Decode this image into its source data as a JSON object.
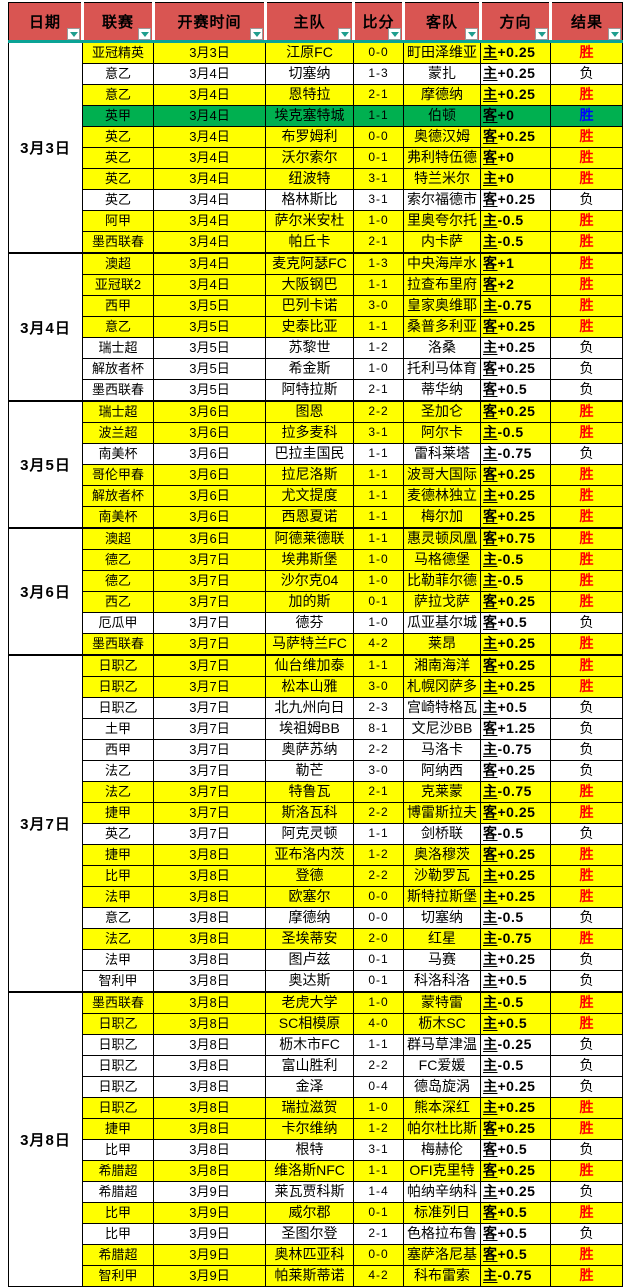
{
  "table": {
    "headers": [
      "日期",
      "联赛",
      "开赛时间",
      "主队",
      "比分",
      "客队",
      "方向",
      "结果"
    ],
    "groups": [
      {
        "date": "3月3日",
        "rows": [
          {
            "league": "亚冠精英",
            "time": "3月3日",
            "home": "江原FC",
            "score": "0-0",
            "away": "町田泽维亚",
            "dir": "主+0.25",
            "result": "胜",
            "style": "win"
          },
          {
            "league": "意乙",
            "time": "3月4日",
            "home": "切塞纳",
            "score": "1-3",
            "away": "蒙扎",
            "dir": "主+0.25",
            "result": "负",
            "style": "loss"
          },
          {
            "league": "意乙",
            "time": "3月4日",
            "home": "恩特拉",
            "score": "2-1",
            "away": "摩德纳",
            "dir": "主+0.25",
            "result": "胜",
            "style": "win"
          },
          {
            "league": "英甲",
            "time": "3月4日",
            "home": "埃克塞特城",
            "score": "1-1",
            "away": "伯顿",
            "dir": "客+0",
            "result": "胜",
            "style": "green"
          },
          {
            "league": "英乙",
            "time": "3月4日",
            "home": "布罗姆利",
            "score": "0-0",
            "away": "奥德汉姆",
            "dir": "客+0.25",
            "result": "胜",
            "style": "win"
          },
          {
            "league": "英乙",
            "time": "3月4日",
            "home": "沃尔索尔",
            "score": "0-1",
            "away": "弗利特伍德",
            "dir": "客+0",
            "result": "胜",
            "style": "win"
          },
          {
            "league": "英乙",
            "time": "3月4日",
            "home": "纽波特",
            "score": "3-1",
            "away": "特兰米尔",
            "dir": "主+0",
            "result": "胜",
            "style": "win"
          },
          {
            "league": "英乙",
            "time": "3月4日",
            "home": "格林斯比",
            "score": "3-1",
            "away": "索尔福德市",
            "dir": "客+0.25",
            "result": "负",
            "style": "loss"
          },
          {
            "league": "阿甲",
            "time": "3月4日",
            "home": "萨尔米安杜",
            "score": "1-0",
            "away": "里奥夸尔托学生",
            "dir": "主-0.5",
            "result": "胜",
            "style": "win"
          },
          {
            "league": "墨西联春",
            "time": "3月4日",
            "home": "帕丘卡",
            "score": "2-1",
            "away": "内卡萨",
            "dir": "主-0.5",
            "result": "胜",
            "style": "win"
          }
        ]
      },
      {
        "date": "3月4日",
        "rows": [
          {
            "league": "澳超",
            "time": "3月4日",
            "home": "麦克阿瑟FC",
            "score": "1-3",
            "away": "中央海岸水手",
            "dir": "客+1",
            "result": "胜",
            "style": "win"
          },
          {
            "league": "亚冠联2",
            "time": "3月4日",
            "home": "大阪钢巴",
            "score": "1-1",
            "away": "拉查布里府",
            "dir": "客+2",
            "result": "胜",
            "style": "win"
          },
          {
            "league": "西甲",
            "time": "3月5日",
            "home": "巴列卡诺",
            "score": "3-0",
            "away": "皇家奥维耶多",
            "dir": "主-0.75",
            "result": "胜",
            "style": "win"
          },
          {
            "league": "意乙",
            "time": "3月5日",
            "home": "史泰比亚",
            "score": "1-1",
            "away": "桑普多利亚",
            "dir": "客+0.25",
            "result": "胜",
            "style": "win"
          },
          {
            "league": "瑞士超",
            "time": "3月5日",
            "home": "苏黎世",
            "score": "1-2",
            "away": "洛桑",
            "dir": "主+0.25",
            "result": "负",
            "style": "loss"
          },
          {
            "league": "解放者杯",
            "time": "3月5日",
            "home": "希金斯",
            "score": "1-0",
            "away": "托利马体育",
            "dir": "客+0.25",
            "result": "负",
            "style": "loss"
          },
          {
            "league": "墨西联春",
            "time": "3月5日",
            "home": "阿特拉斯",
            "score": "2-1",
            "away": "蒂华纳",
            "dir": "客+0.5",
            "result": "负",
            "style": "loss"
          }
        ]
      },
      {
        "date": "3月5日",
        "rows": [
          {
            "league": "瑞士超",
            "time": "3月6日",
            "home": "图恩",
            "score": "2-2",
            "away": "圣加仑",
            "dir": "客+0.25",
            "result": "胜",
            "style": "win"
          },
          {
            "league": "波兰超",
            "time": "3月6日",
            "home": "拉多麦科",
            "score": "3-1",
            "away": "阿尔卡",
            "dir": "主-0.5",
            "result": "胜",
            "style": "win"
          },
          {
            "league": "南美杯",
            "time": "3月6日",
            "home": "巴拉圭国民",
            "score": "1-1",
            "away": "雷科莱塔",
            "dir": "主-0.75",
            "result": "负",
            "style": "loss"
          },
          {
            "league": "哥伦甲春",
            "time": "3月6日",
            "home": "拉尼洛斯",
            "score": "1-1",
            "away": "波哥大国际",
            "dir": "客+0.25",
            "result": "胜",
            "style": "win"
          },
          {
            "league": "解放者杯",
            "time": "3月6日",
            "home": "尤文提度",
            "score": "1-1",
            "away": "麦德林独立",
            "dir": "主+0.25",
            "result": "胜",
            "style": "win"
          },
          {
            "league": "南美杯",
            "time": "3月6日",
            "home": "西恩夏诺",
            "score": "1-1",
            "away": "梅尔加",
            "dir": "客+0.25",
            "result": "胜",
            "style": "win"
          }
        ]
      },
      {
        "date": "3月6日",
        "rows": [
          {
            "league": "澳超",
            "time": "3月6日",
            "home": "阿德莱德联",
            "score": "1-1",
            "away": "惠灵顿凤凰",
            "dir": "客+0.75",
            "result": "胜",
            "style": "win"
          },
          {
            "league": "德乙",
            "time": "3月7日",
            "home": "埃弗斯堡",
            "score": "1-0",
            "away": "马格德堡",
            "dir": "主-0.5",
            "result": "胜",
            "style": "win"
          },
          {
            "league": "德乙",
            "time": "3月7日",
            "home": "沙尔克04",
            "score": "1-0",
            "away": "比勒菲尔德",
            "dir": "主-0.5",
            "result": "胜",
            "style": "win"
          },
          {
            "league": "西乙",
            "time": "3月7日",
            "home": "加的斯",
            "score": "0-1",
            "away": "萨拉戈萨",
            "dir": "客+0.25",
            "result": "胜",
            "style": "win"
          },
          {
            "league": "厄瓜甲",
            "time": "3月7日",
            "home": "德芬",
            "score": "1-0",
            "away": "瓜亚基尔城",
            "dir": "客+0.5",
            "result": "负",
            "style": "loss"
          },
          {
            "league": "墨西联春",
            "time": "3月7日",
            "home": "马萨特兰FC",
            "score": "4-2",
            "away": "莱昂",
            "dir": "主+0.25",
            "result": "胜",
            "style": "win"
          }
        ]
      },
      {
        "date": "3月7日",
        "rows": [
          {
            "league": "日职乙",
            "time": "3月7日",
            "home": "仙台维加泰",
            "score": "1-1",
            "away": "湘南海洋",
            "dir": "客+0.25",
            "result": "胜",
            "style": "win"
          },
          {
            "league": "日职乙",
            "time": "3月7日",
            "home": "松本山雅",
            "score": "3-0",
            "away": "札幌冈萨多",
            "dir": "主+0.25",
            "result": "胜",
            "style": "win"
          },
          {
            "league": "日职乙",
            "time": "3月7日",
            "home": "北九州向日葵",
            "score": "2-3",
            "away": "宫崎特格瓦贾罗",
            "dir": "主+0.5",
            "result": "负",
            "style": "loss"
          },
          {
            "league": "土甲",
            "time": "3月7日",
            "home": "埃祖姆BB",
            "score": "8-1",
            "away": "文尼沙BB",
            "dir": "客+1.25",
            "result": "负",
            "style": "loss"
          },
          {
            "league": "西甲",
            "time": "3月7日",
            "home": "奥萨苏纳",
            "score": "2-2",
            "away": "马洛卡",
            "dir": "主-0.75",
            "result": "负",
            "style": "loss"
          },
          {
            "league": "法乙",
            "time": "3月7日",
            "home": "勒芒",
            "score": "3-0",
            "away": "阿纳西",
            "dir": "客+0.25",
            "result": "负",
            "style": "loss"
          },
          {
            "league": "法乙",
            "time": "3月7日",
            "home": "特鲁瓦",
            "score": "2-1",
            "away": "克莱蒙",
            "dir": "主-0.75",
            "result": "胜",
            "style": "win"
          },
          {
            "league": "捷甲",
            "time": "3月7日",
            "home": "斯洛瓦科",
            "score": "2-2",
            "away": "博雷斯拉夫",
            "dir": "客+0.25",
            "result": "胜",
            "style": "win"
          },
          {
            "league": "英乙",
            "time": "3月7日",
            "home": "阿克灵顿",
            "score": "1-1",
            "away": "剑桥联",
            "dir": "客-0.5",
            "result": "负",
            "style": "loss"
          },
          {
            "league": "捷甲",
            "time": "3月8日",
            "home": "亚布洛内茨",
            "score": "1-2",
            "away": "奥洛穆茨",
            "dir": "客+0.25",
            "result": "胜",
            "style": "win"
          },
          {
            "league": "比甲",
            "time": "3月8日",
            "home": "登德",
            "score": "2-2",
            "away": "沙勒罗瓦",
            "dir": "主+0.25",
            "result": "胜",
            "style": "win"
          },
          {
            "league": "法甲",
            "time": "3月8日",
            "home": "欧塞尔",
            "score": "0-0",
            "away": "斯特拉斯堡",
            "dir": "主+0.25",
            "result": "胜",
            "style": "win"
          },
          {
            "league": "意乙",
            "time": "3月8日",
            "home": "摩德纳",
            "score": "0-0",
            "away": "切塞纳",
            "dir": "主-0.5",
            "result": "负",
            "style": "loss"
          },
          {
            "league": "法乙",
            "time": "3月8日",
            "home": "圣埃蒂安",
            "score": "2-0",
            "away": "红星",
            "dir": "主-0.75",
            "result": "胜",
            "style": "win"
          },
          {
            "league": "法甲",
            "time": "3月8日",
            "home": "图卢兹",
            "score": "0-1",
            "away": "马赛",
            "dir": "主+0.25",
            "result": "负",
            "style": "loss"
          },
          {
            "league": "智利甲",
            "time": "3月8日",
            "home": "奥达斯",
            "score": "0-1",
            "away": "科洛科洛",
            "dir": "主+0.5",
            "result": "负",
            "style": "loss"
          }
        ]
      },
      {
        "date": "3月8日",
        "rows": [
          {
            "league": "墨西联春",
            "time": "3月8日",
            "home": "老虎大学",
            "score": "1-0",
            "away": "蒙特雷",
            "dir": "主-0.5",
            "result": "胜",
            "style": "win"
          },
          {
            "league": "日职乙",
            "time": "3月8日",
            "home": "SC相模原",
            "score": "4-0",
            "away": "枥木SC",
            "dir": "主+0.5",
            "result": "胜",
            "style": "win"
          },
          {
            "league": "日职乙",
            "time": "3月8日",
            "home": "枥木市FC",
            "score": "1-1",
            "away": "群马草津温泉",
            "dir": "主-0.25",
            "result": "负",
            "style": "loss"
          },
          {
            "league": "日职乙",
            "time": "3月8日",
            "home": "富山胜利",
            "score": "2-2",
            "away": "FC爱媛",
            "dir": "主-0.5",
            "result": "负",
            "style": "loss"
          },
          {
            "league": "日职乙",
            "time": "3月8日",
            "home": "金泽",
            "score": "0-4",
            "away": "德岛旋涡",
            "dir": "主+0.25",
            "result": "负",
            "style": "loss"
          },
          {
            "league": "日职乙",
            "time": "3月8日",
            "home": "瑞拉滋贺",
            "score": "1-0",
            "away": "熊本深红",
            "dir": "主+0.25",
            "result": "胜",
            "style": "win"
          },
          {
            "league": "捷甲",
            "time": "3月8日",
            "home": "卡尔维纳",
            "score": "1-2",
            "away": "帕尔杜比斯",
            "dir": "客+0.25",
            "result": "胜",
            "style": "win"
          },
          {
            "league": "比甲",
            "time": "3月8日",
            "home": "根特",
            "score": "3-1",
            "away": "梅赫伦",
            "dir": "客+0.5",
            "result": "负",
            "style": "loss"
          },
          {
            "league": "希腊超",
            "time": "3月8日",
            "home": "维洛斯NFC",
            "score": "1-1",
            "away": "OFI克里特",
            "dir": "客+0.25",
            "result": "胜",
            "style": "win"
          },
          {
            "league": "希腊超",
            "time": "3月9日",
            "home": "莱瓦贾科斯",
            "score": "1-4",
            "away": "帕纳辛纳科斯",
            "dir": "主+0.25",
            "result": "负",
            "style": "loss"
          },
          {
            "league": "比甲",
            "time": "3月9日",
            "home": "威尔郡",
            "score": "0-1",
            "away": "标准列日",
            "dir": "客+0.5",
            "result": "胜",
            "style": "win"
          },
          {
            "league": "比甲",
            "time": "3月9日",
            "home": "圣图尔登",
            "score": "2-1",
            "away": "色格拉布鲁日",
            "dir": "客+0.5",
            "result": "负",
            "style": "loss"
          },
          {
            "league": "希腊超",
            "time": "3月9日",
            "home": "奥林匹亚科斯",
            "score": "0-0",
            "away": "塞萨洛尼基",
            "dir": "客+0.5",
            "result": "胜",
            "style": "win"
          },
          {
            "league": "智利甲",
            "time": "3月9日",
            "home": "帕莱斯蒂诺",
            "score": "4-2",
            "away": "科布雷索",
            "dir": "主-0.75",
            "result": "胜",
            "style": "win"
          }
        ]
      }
    ]
  },
  "icons": {
    "filter": "filter-dropdown-icon"
  },
  "colors": {
    "header_bg": "#d95552",
    "header_divider": "#0aa396",
    "filter_arrow": "#1f9e8e",
    "win_row": "#ffff00",
    "loss_row": "#ffffff",
    "highlight_row": "#00b050",
    "win_text": "#ff0000",
    "highlight_win_text": "#0000ff",
    "grid": "#000000"
  }
}
